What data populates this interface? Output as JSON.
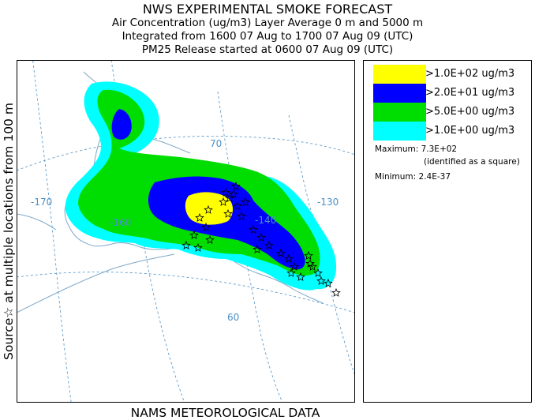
{
  "title": {
    "line1": "NWS EXPERIMENTAL SMOKE FORECAST",
    "line2": "Air Concentration (ug/m3) Layer Average    0 m and  5000 m",
    "line3": "Integrated from 1600 07 Aug to 1700 07 Aug 09 (UTC)",
    "line4": "PM25 Release started at 0600 07 Aug 09 (UTC)"
  },
  "side_label": "Source☆ at multiple locations   from   100 m",
  "bottom_label": "NAMS METEOROLOGICAL DATA",
  "legend": [
    {
      "label": ">1.0E+02 ug/m3",
      "color": "#ffff00"
    },
    {
      "label": ">2.0E+01 ug/m3",
      "color": "#0000ff"
    },
    {
      "label": ">5.0E+00 ug/m3",
      "color": "#00dd00"
    },
    {
      "label": ">1.0E+00 ug/m3",
      "color": "#00ffff"
    }
  ],
  "stats": {
    "maximum": "Maximum: 7.3E+02",
    "maximum_note": "(identified as a square)",
    "minimum": "Minimum: 2.4E-37"
  },
  "map": {
    "lon_labels": [
      "-170",
      "-160",
      "-140",
      "-130"
    ],
    "lat_labels": [
      "70",
      "60"
    ],
    "grid_color": "#4a90c8"
  }
}
